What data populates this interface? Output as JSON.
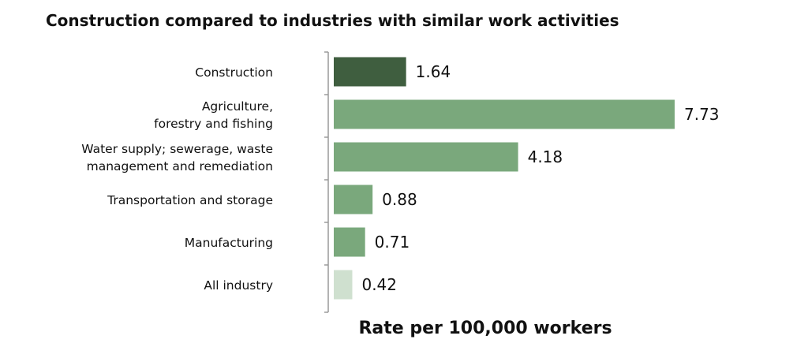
{
  "chart_data": {
    "type": "bar",
    "orientation": "horizontal",
    "title": "Construction compared to industries with similar work activities",
    "xlabel": "Rate per 100,000 workers",
    "ylabel": "",
    "categories": [
      [
        "Construction"
      ],
      [
        "Agriculture,",
        "forestry and fishing"
      ],
      [
        "Water supply; sewerage, waste",
        "management and remediation"
      ],
      [
        "Transportation and storage"
      ],
      [
        "Manufacturing"
      ],
      [
        "All industry"
      ]
    ],
    "values": [
      1.64,
      7.73,
      4.18,
      0.88,
      0.71,
      0.42
    ],
    "value_labels": [
      "1.64",
      "7.73",
      "4.18",
      "0.88",
      "0.71",
      "0.42"
    ],
    "bar_colors": [
      "#3f5e3f",
      "#7aa87c",
      "#7aa87c",
      "#7aa87c",
      "#7aa87c",
      "#cfe0cf"
    ],
    "xlim": [
      0,
      8
    ],
    "grid": false,
    "legend": "none"
  }
}
